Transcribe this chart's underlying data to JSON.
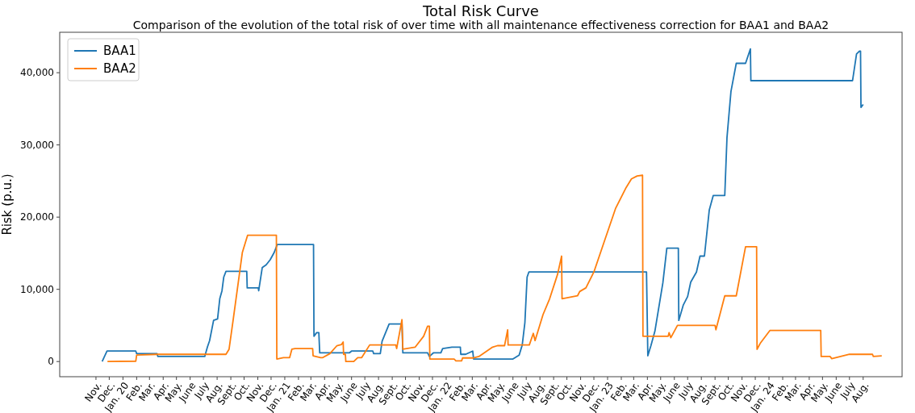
{
  "chart_data": {
    "type": "line",
    "title": "Total Risk Curve",
    "subtitle": "Comparison of the evolution of the total risk of over time with all maintenance effectiveness correction for BAA1 and BAA2",
    "ylabel": "Risk (p.u.)",
    "legend": "top left",
    "grid": false,
    "line_style": "solid",
    "marker": "none",
    "xlim": [
      "2019-08-11",
      "2024-10-28"
    ],
    "ylim": [
      -2100,
      45600
    ],
    "yticks": [
      0,
      {
        "value": 10000,
        "label": "10,000"
      },
      {
        "value": 20000,
        "label": "20,000"
      },
      {
        "value": 30000,
        "label": "30,000"
      },
      {
        "value": 40000,
        "label": "40,000"
      }
    ],
    "xticks": [
      {
        "value": "2019-11-01",
        "label": "Nov."
      },
      {
        "value": "2019-12-01",
        "label": "Dec."
      },
      {
        "value": "2020-01-01",
        "label": "Jan. 20"
      },
      {
        "value": "2020-02-01",
        "label": "Feb."
      },
      {
        "value": "2020-03-01",
        "label": "Mar."
      },
      {
        "value": "2020-04-01",
        "label": "Apr."
      },
      {
        "value": "2020-05-01",
        "label": "May."
      },
      {
        "value": "2020-06-01",
        "label": "June"
      },
      {
        "value": "2020-07-01",
        "label": "July"
      },
      {
        "value": "2020-08-01",
        "label": "Aug."
      },
      {
        "value": "2020-09-01",
        "label": "Sept."
      },
      {
        "value": "2020-10-01",
        "label": "Oct."
      },
      {
        "value": "2020-11-01",
        "label": "Nov."
      },
      {
        "value": "2020-12-01",
        "label": "Dec."
      },
      {
        "value": "2021-01-01",
        "label": "Jan. 21"
      },
      {
        "value": "2021-02-01",
        "label": "Feb."
      },
      {
        "value": "2021-03-01",
        "label": "Mar."
      },
      {
        "value": "2021-04-01",
        "label": "Apr."
      },
      {
        "value": "2021-05-01",
        "label": "May."
      },
      {
        "value": "2021-06-01",
        "label": "June"
      },
      {
        "value": "2021-07-01",
        "label": "July"
      },
      {
        "value": "2021-08-01",
        "label": "Aug."
      },
      {
        "value": "2021-09-01",
        "label": "Sept."
      },
      {
        "value": "2021-10-01",
        "label": "Oct."
      },
      {
        "value": "2021-11-01",
        "label": "Nov."
      },
      {
        "value": "2021-12-01",
        "label": "Dec."
      },
      {
        "value": "2022-01-01",
        "label": "Jan. 22"
      },
      {
        "value": "2022-02-01",
        "label": "Feb."
      },
      {
        "value": "2022-03-01",
        "label": "Mar."
      },
      {
        "value": "2022-04-01",
        "label": "Apr."
      },
      {
        "value": "2022-05-01",
        "label": "May."
      },
      {
        "value": "2022-06-01",
        "label": "June"
      },
      {
        "value": "2022-07-01",
        "label": "July"
      },
      {
        "value": "2022-08-01",
        "label": "Aug."
      },
      {
        "value": "2022-09-01",
        "label": "Sept."
      },
      {
        "value": "2022-10-01",
        "label": "Oct."
      },
      {
        "value": "2022-11-01",
        "label": "Nov."
      },
      {
        "value": "2022-12-01",
        "label": "Dec."
      },
      {
        "value": "2023-01-01",
        "label": "Jan. 23"
      },
      {
        "value": "2023-02-01",
        "label": "Feb."
      },
      {
        "value": "2023-03-01",
        "label": "Mar."
      },
      {
        "value": "2023-04-01",
        "label": "Apr."
      },
      {
        "value": "2023-05-01",
        "label": "May."
      },
      {
        "value": "2023-06-01",
        "label": "June"
      },
      {
        "value": "2023-07-01",
        "label": "July"
      },
      {
        "value": "2023-08-01",
        "label": "Aug."
      },
      {
        "value": "2023-09-01",
        "label": "Sept."
      },
      {
        "value": "2023-10-01",
        "label": "Oct."
      },
      {
        "value": "2023-11-01",
        "label": "Nov."
      },
      {
        "value": "2023-12-01",
        "label": "Dec."
      },
      {
        "value": "2024-01-01",
        "label": "Jan. 24"
      },
      {
        "value": "2024-02-01",
        "label": "Feb."
      },
      {
        "value": "2024-03-01",
        "label": "Mar."
      },
      {
        "value": "2024-04-01",
        "label": "Apr."
      },
      {
        "value": "2024-05-01",
        "label": "May."
      },
      {
        "value": "2024-06-01",
        "label": "June"
      },
      {
        "value": "2024-07-01",
        "label": "July"
      },
      {
        "value": "2024-08-01",
        "label": "Aug."
      }
    ],
    "series": [
      {
        "name": "BAA1",
        "color": "#1f77b4",
        "x": [
          "2019-11-15",
          "2019-11-26",
          "2020-01-30",
          "2020-02-01",
          "2020-03-18",
          "2020-03-20",
          "2020-07-04",
          "2020-07-10",
          "2020-07-15",
          "2020-07-24",
          "2020-08-02",
          "2020-08-07",
          "2020-08-12",
          "2020-08-16",
          "2020-08-21",
          "2020-10-07",
          "2020-10-08",
          "2020-11-02",
          "2020-11-03",
          "2020-11-11",
          "2020-11-20",
          "2020-11-29",
          "2020-12-08",
          "2020-12-15",
          "2021-03-07",
          "2021-03-08",
          "2021-03-14",
          "2021-03-19",
          "2021-03-21",
          "2021-05-27",
          "2021-06-01",
          "2021-07-19",
          "2021-07-21",
          "2021-08-05",
          "2021-08-09",
          "2021-08-25",
          "2021-09-23",
          "2021-09-25",
          "2021-11-20",
          "2021-11-24",
          "2021-12-03",
          "2021-12-20",
          "2021-12-24",
          "2022-01-14",
          "2022-02-02",
          "2022-02-03",
          "2022-02-14",
          "2022-03-02",
          "2022-03-04",
          "2022-06-01",
          "2022-06-15",
          "2022-06-22",
          "2022-06-28",
          "2022-07-03",
          "2022-07-07",
          "2023-03-30",
          "2023-04-02",
          "2023-04-09",
          "2023-04-18",
          "2023-05-06",
          "2023-05-15",
          "2023-06-10",
          "2023-06-11",
          "2023-06-21",
          "2023-07-01",
          "2023-07-08",
          "2023-07-21",
          "2023-07-29",
          "2023-08-08",
          "2023-08-19",
          "2023-08-28",
          "2023-09-23",
          "2023-09-28",
          "2023-10-07",
          "2023-10-19",
          "2023-11-09",
          "2023-11-20",
          "2023-11-21",
          "2024-07-08",
          "2024-07-17",
          "2024-07-24",
          "2024-07-26",
          "2024-07-27",
          "2024-08-01"
        ],
        "values": [
          0,
          1450,
          1450,
          1100,
          1100,
          700,
          700,
          2000,
          2900,
          5700,
          5900,
          8700,
          9800,
          11700,
          12500,
          12500,
          10200,
          10200,
          9800,
          13000,
          13400,
          14100,
          15100,
          16200,
          16200,
          3500,
          4000,
          4000,
          1200,
          1200,
          1450,
          1450,
          1100,
          1100,
          2800,
          5200,
          5200,
          1200,
          1200,
          700,
          1200,
          1200,
          1800,
          2000,
          2000,
          1000,
          1000,
          1450,
          350,
          350,
          900,
          2300,
          5400,
          11700,
          12400,
          12400,
          800,
          2200,
          4200,
          10900,
          15700,
          15700,
          5700,
          7800,
          9000,
          11000,
          12400,
          14600,
          14600,
          21000,
          23000,
          23000,
          31000,
          37400,
          41300,
          41300,
          43300,
          38900,
          38900,
          42600,
          43000,
          43000,
          35200,
          35600
        ]
      },
      {
        "name": "BAA2",
        "color": "#ff7f0e",
        "x": [
          "2019-11-27",
          "2020-01-30",
          "2020-02-01",
          "2020-03-20",
          "2020-08-21",
          "2020-08-28",
          "2020-09-07",
          "2020-09-27",
          "2020-10-09",
          "2020-12-13",
          "2020-12-14",
          "2020-12-29",
          "2021-01-12",
          "2021-01-17",
          "2021-01-24",
          "2021-03-05",
          "2021-03-06",
          "2021-03-23",
          "2021-03-28",
          "2021-04-13",
          "2021-04-29",
          "2021-05-09",
          "2021-05-13",
          "2021-05-14",
          "2021-05-18",
          "2021-05-19",
          "2021-06-06",
          "2021-06-15",
          "2021-06-24",
          "2021-07-12",
          "2021-09-09",
          "2021-09-11",
          "2021-09-23",
          "2021-09-25",
          "2021-10-23",
          "2021-11-11",
          "2021-11-20",
          "2021-11-24",
          "2021-11-25",
          "2022-01-19",
          "2022-01-23",
          "2022-02-05",
          "2022-02-07",
          "2022-03-04",
          "2022-03-16",
          "2022-04-16",
          "2022-04-27",
          "2022-05-13",
          "2022-05-20",
          "2022-05-21",
          "2022-07-08",
          "2022-07-17",
          "2022-07-21",
          "2022-08-08",
          "2022-08-23",
          "2022-09-10",
          "2022-09-19",
          "2022-09-20",
          "2022-10-25",
          "2022-10-30",
          "2022-11-13",
          "2022-12-01",
          "2022-12-26",
          "2023-01-19",
          "2023-02-12",
          "2023-02-24",
          "2023-03-09",
          "2023-03-21",
          "2023-03-22",
          "2023-05-18",
          "2023-05-20",
          "2023-05-24",
          "2023-06-08",
          "2023-09-01",
          "2023-09-03",
          "2023-09-23",
          "2023-10-19",
          "2023-11-09",
          "2023-12-04",
          "2023-12-05",
          "2023-12-13",
          "2024-01-03",
          "2024-04-27",
          "2024-04-28",
          "2024-05-18",
          "2024-05-22",
          "2024-07-01",
          "2024-08-22",
          "2024-08-24",
          "2024-09-12"
        ],
        "values": [
          0,
          50,
          900,
          1000,
          1000,
          1700,
          6100,
          15100,
          17500,
          17500,
          350,
          550,
          550,
          1700,
          1800,
          1800,
          800,
          550,
          550,
          1100,
          2200,
          2350,
          2700,
          1000,
          1000,
          0,
          0,
          550,
          550,
          2300,
          2300,
          1800,
          5800,
          1700,
          2000,
          3500,
          4900,
          4900,
          350,
          350,
          100,
          100,
          500,
          500,
          700,
          2000,
          2200,
          2200,
          4400,
          2300,
          2300,
          3900,
          2900,
          6500,
          8700,
          12100,
          14600,
          8700,
          9100,
          9700,
          10200,
          12400,
          16900,
          21200,
          24100,
          25300,
          25700,
          25800,
          3500,
          3500,
          4000,
          3300,
          5000,
          5000,
          4400,
          9100,
          9100,
          15900,
          15900,
          1700,
          2600,
          4300,
          4300,
          700,
          700,
          400,
          1000,
          1000,
          700,
          800
        ]
      }
    ]
  }
}
